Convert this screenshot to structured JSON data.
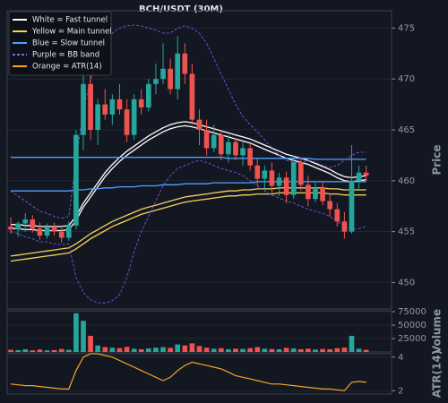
{
  "chart_data": [
    {
      "type": "candlestick",
      "title": "BCH/USDT (30M)",
      "ylabel": "Price",
      "ylim": [
        447.4,
        476.7
      ],
      "yticks": [
        450,
        455,
        460,
        465,
        470,
        475
      ],
      "grid": true,
      "up_color": "#26a69a",
      "down_color": "#ef5350",
      "open": [
        455.5,
        455.2,
        455.8,
        456.2,
        455.3,
        454.6,
        455.4,
        455.0,
        454.4,
        455.6,
        464.5,
        469.5,
        465.0,
        467.5,
        466.5,
        468.0,
        467.0,
        464.5,
        468.0,
        467.2,
        469.5,
        470.0,
        471.0,
        469.0,
        472.5,
        470.5,
        466.0,
        465.0,
        463.2,
        464.5,
        462.6,
        463.8,
        462.5,
        463.2,
        461.5,
        460.2,
        461.0,
        459.5,
        460.3,
        458.6,
        461.8,
        459.6,
        458.2,
        459.3,
        458.0,
        457.2,
        456.0,
        455.0,
        460.0,
        460.8
      ],
      "high": [
        456.4,
        456.0,
        456.8,
        456.6,
        455.9,
        455.8,
        455.9,
        455.6,
        456.0,
        465.0,
        471.0,
        470.5,
        468.0,
        469.0,
        468.5,
        469.5,
        468.0,
        468.5,
        469.0,
        470.0,
        471.5,
        473.5,
        472.0,
        474.2,
        473.5,
        471.5,
        467.0,
        466.0,
        465.5,
        465.0,
        464.5,
        464.2,
        463.8,
        463.6,
        462.2,
        461.5,
        461.8,
        460.8,
        460.9,
        462.5,
        462.3,
        460.5,
        459.8,
        459.9,
        458.8,
        457.8,
        456.9,
        463.5,
        461.5,
        461.5
      ],
      "low": [
        454.8,
        454.5,
        455.0,
        454.9,
        454.2,
        454.3,
        454.6,
        453.9,
        454.1,
        455.2,
        463.0,
        464.0,
        463.5,
        466.0,
        465.5,
        466.5,
        463.8,
        464.0,
        466.5,
        466.8,
        468.5,
        469.5,
        468.5,
        468.0,
        469.5,
        465.5,
        463.5,
        462.5,
        462.8,
        462.0,
        461.8,
        462.0,
        461.5,
        461.0,
        459.5,
        459.0,
        458.8,
        458.5,
        457.8,
        458.2,
        459.0,
        457.5,
        457.9,
        457.6,
        456.5,
        455.5,
        454.3,
        454.8,
        459.2,
        460.0
      ],
      "close": [
        455.2,
        455.8,
        456.2,
        455.3,
        454.6,
        455.4,
        455.0,
        454.4,
        455.6,
        464.5,
        469.5,
        465.0,
        467.5,
        466.5,
        468.0,
        467.0,
        464.5,
        468.0,
        467.2,
        469.5,
        470.0,
        471.0,
        469.0,
        472.5,
        470.5,
        466.0,
        465.0,
        463.2,
        464.5,
        462.6,
        463.8,
        462.5,
        463.2,
        461.5,
        460.2,
        461.0,
        459.5,
        460.3,
        458.6,
        461.8,
        459.6,
        458.2,
        459.3,
        458.0,
        457.2,
        456.0,
        455.0,
        460.0,
        460.8,
        460.5
      ],
      "overlays": [
        {
          "name": "White = Fast tunnel",
          "color": "#ffffff",
          "dashed": false,
          "upper": [
            455.7,
            455.7,
            455.6,
            455.6,
            455.5,
            455.5,
            455.5,
            455.5,
            455.6,
            456.5,
            457.8,
            458.8,
            459.8,
            460.8,
            461.6,
            462.3,
            462.9,
            463.4,
            463.9,
            464.4,
            464.8,
            465.2,
            465.5,
            465.7,
            465.8,
            465.7,
            465.5,
            465.3,
            465.1,
            464.9,
            464.7,
            464.5,
            464.3,
            464.1,
            463.8,
            463.5,
            463.2,
            462.9,
            462.6,
            462.4,
            462.2,
            462.0,
            461.7,
            461.4,
            461.1,
            460.7,
            460.4,
            460.3,
            460.4,
            460.5
          ],
          "lower": [
            455.3,
            455.3,
            455.2,
            455.2,
            455.1,
            455.1,
            455.1,
            455.1,
            455.2,
            456.1,
            457.4,
            458.4,
            459.4,
            460.4,
            461.2,
            461.9,
            462.5,
            463.0,
            463.5,
            464.0,
            464.4,
            464.8,
            465.1,
            465.3,
            465.4,
            465.3,
            465.1,
            464.9,
            464.7,
            464.5,
            464.3,
            464.1,
            463.9,
            463.7,
            463.4,
            463.1,
            462.8,
            462.5,
            462.2,
            462.0,
            461.8,
            461.6,
            461.3,
            461.0,
            460.7,
            460.3,
            460.0,
            459.9,
            460.0,
            460.1
          ]
        },
        {
          "name": "Yellow = Main tunnel",
          "color": "#f5d35a",
          "dashed": false,
          "upper": [
            452.6,
            452.7,
            452.8,
            452.9,
            453.0,
            453.1,
            453.2,
            453.3,
            453.4,
            453.8,
            454.3,
            454.8,
            455.2,
            455.6,
            456.0,
            456.3,
            456.6,
            456.9,
            457.2,
            457.4,
            457.6,
            457.8,
            458.0,
            458.2,
            458.4,
            458.5,
            458.6,
            458.7,
            458.8,
            458.9,
            459.0,
            459.0,
            459.1,
            459.1,
            459.2,
            459.2,
            459.2,
            459.3,
            459.3,
            459.3,
            459.3,
            459.3,
            459.3,
            459.3,
            459.2,
            459.2,
            459.1,
            459.1,
            459.1,
            459.1
          ],
          "lower": [
            452.1,
            452.2,
            452.3,
            452.4,
            452.5,
            452.6,
            452.7,
            452.8,
            452.9,
            453.3,
            453.8,
            454.3,
            454.7,
            455.1,
            455.5,
            455.8,
            456.1,
            456.4,
            456.7,
            456.9,
            457.1,
            457.3,
            457.5,
            457.7,
            457.9,
            458.0,
            458.1,
            458.2,
            458.3,
            458.4,
            458.5,
            458.5,
            458.6,
            458.6,
            458.7,
            458.7,
            458.7,
            458.8,
            458.8,
            458.8,
            458.8,
            458.8,
            458.8,
            458.8,
            458.7,
            458.7,
            458.6,
            458.6,
            458.6,
            458.6
          ]
        },
        {
          "name": "Blue = Slow tunnel",
          "color": "#4da3ff",
          "dashed": false,
          "upper": [
            462.3,
            462.3,
            462.3,
            462.3,
            462.3,
            462.3,
            462.3,
            462.3,
            462.3,
            462.3,
            462.3,
            462.3,
            462.3,
            462.3,
            462.3,
            462.3,
            462.3,
            462.3,
            462.3,
            462.3,
            462.3,
            462.3,
            462.3,
            462.3,
            462.3,
            462.3,
            462.3,
            462.3,
            462.3,
            462.3,
            462.2,
            462.2,
            462.2,
            462.2,
            462.2,
            462.2,
            462.2,
            462.2,
            462.2,
            462.2,
            462.2,
            462.2,
            462.1,
            462.1,
            462.1,
            462.1,
            462.1,
            462.1,
            462.1,
            462.1
          ],
          "lower": [
            459.0,
            459.0,
            459.0,
            459.0,
            459.0,
            459.0,
            459.0,
            459.0,
            459.0,
            459.1,
            459.1,
            459.2,
            459.2,
            459.3,
            459.3,
            459.4,
            459.4,
            459.4,
            459.5,
            459.5,
            459.5,
            459.6,
            459.6,
            459.6,
            459.7,
            459.7,
            459.7,
            459.7,
            459.8,
            459.8,
            459.8,
            459.8,
            459.8,
            459.8,
            459.9,
            459.9,
            459.9,
            459.9,
            459.9,
            459.9,
            459.9,
            459.9,
            459.9,
            459.9,
            459.9,
            459.9,
            459.9,
            459.9,
            459.9,
            459.9
          ]
        },
        {
          "name": "Purple = BB band",
          "color": "#8a5cf6",
          "dashed": true,
          "upper": [
            459.0,
            458.5,
            458.0,
            457.5,
            457.0,
            456.8,
            456.5,
            456.3,
            456.5,
            462.0,
            467.0,
            470.0,
            472.0,
            473.5,
            474.5,
            475.0,
            475.2,
            475.3,
            475.2,
            475.0,
            474.8,
            474.5,
            474.5,
            475.0,
            475.2,
            475.0,
            474.5,
            473.5,
            472.0,
            470.5,
            469.0,
            467.5,
            466.3,
            465.5,
            464.8,
            464.0,
            463.2,
            462.5,
            462.0,
            461.8,
            461.8,
            462.0,
            461.8,
            461.5,
            461.3,
            461.5,
            462.0,
            462.5,
            462.8,
            462.8
          ],
          "lower": [
            455.0,
            454.8,
            454.5,
            454.3,
            454.0,
            454.0,
            453.8,
            453.7,
            453.8,
            450.5,
            449.0,
            448.3,
            448.0,
            448.0,
            448.2,
            448.8,
            450.5,
            453.0,
            455.0,
            456.5,
            458.0,
            459.5,
            460.5,
            461.2,
            461.5,
            461.8,
            462.0,
            461.8,
            461.5,
            461.2,
            461.0,
            460.8,
            460.5,
            460.0,
            459.5,
            459.0,
            458.6,
            458.3,
            458.0,
            457.8,
            457.5,
            457.2,
            457.0,
            456.8,
            456.5,
            456.0,
            455.5,
            455.2,
            455.3,
            455.5
          ]
        }
      ]
    },
    {
      "type": "bar",
      "ylabel": "Volume",
      "ylim": [
        0,
        76700
      ],
      "yticks": [
        25000,
        50000,
        75000
      ],
      "grid": true,
      "values": [
        4000,
        3500,
        5000,
        3000,
        4500,
        3000,
        3500,
        5500,
        4000,
        72000,
        58000,
        30000,
        12000,
        9000,
        8000,
        7000,
        9500,
        6000,
        5000,
        6500,
        8000,
        9000,
        7500,
        14000,
        12000,
        16000,
        11000,
        8000,
        6000,
        7000,
        5000,
        6000,
        5500,
        7000,
        9000,
        6000,
        5500,
        5000,
        7500,
        6500,
        5000,
        6000,
        4500,
        5500,
        5000,
        7000,
        8000,
        30000,
        6000,
        4000
      ]
    },
    {
      "type": "line",
      "ylabel": "ATR(14)",
      "ylim": [
        1.8,
        4.2
      ],
      "yticks": [
        2,
        4
      ],
      "grid": true,
      "series": [
        {
          "name": "Orange = ATR(14)",
          "color": "#f5a623",
          "values": [
            2.4,
            2.35,
            2.3,
            2.3,
            2.25,
            2.2,
            2.15,
            2.1,
            2.1,
            3.2,
            4.0,
            4.2,
            4.2,
            4.1,
            4.0,
            3.8,
            3.6,
            3.4,
            3.2,
            3.0,
            2.8,
            2.6,
            2.8,
            3.2,
            3.5,
            3.7,
            3.6,
            3.5,
            3.4,
            3.3,
            3.1,
            2.9,
            2.8,
            2.7,
            2.6,
            2.5,
            2.4,
            2.4,
            2.35,
            2.3,
            2.25,
            2.2,
            2.15,
            2.1,
            2.1,
            2.05,
            2.0,
            2.5,
            2.55,
            2.5
          ]
        }
      ]
    }
  ]
}
